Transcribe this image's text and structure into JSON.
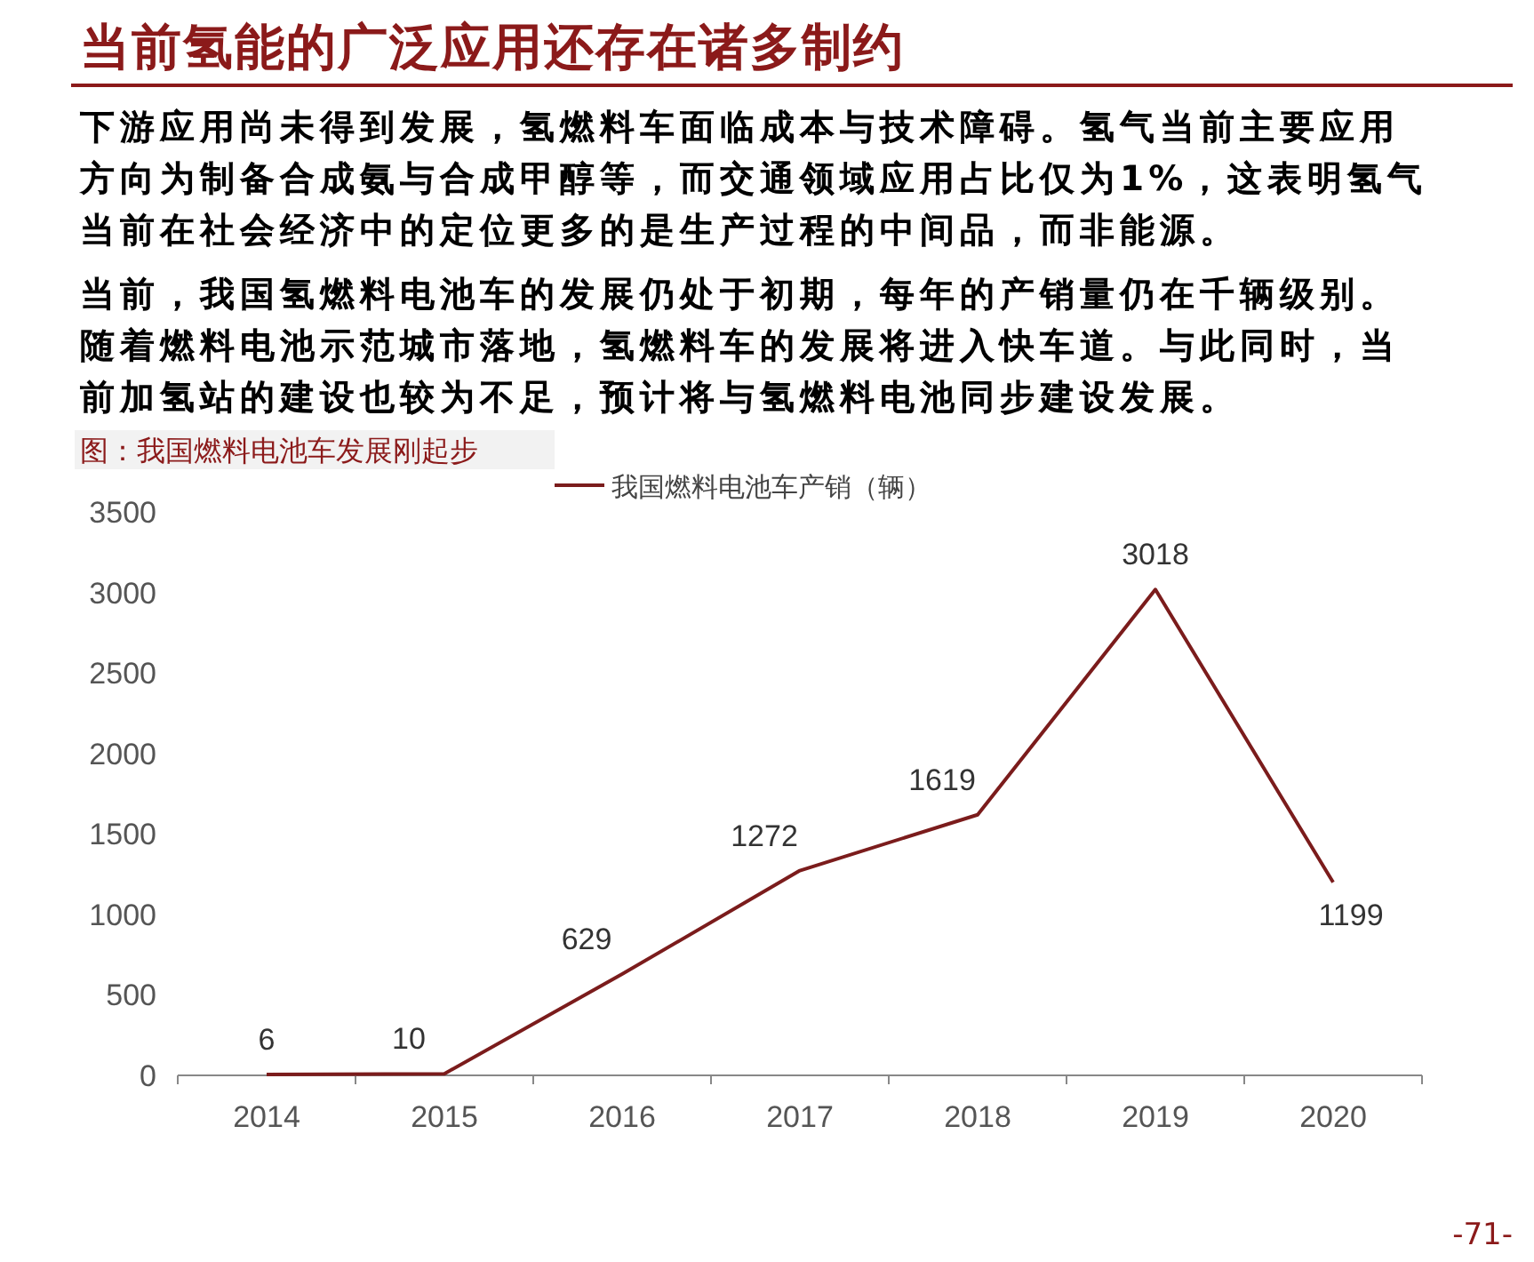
{
  "chart_data": {
    "type": "line",
    "title": "当前氢能的广泛应用还存在诸多制约",
    "subtitle": "图：我国燃料电池车发展刚起步",
    "annotations": [
      "下游应用尚未得到发展，氢燃料车面临成本与技术障碍。氢气当前主要应用方向为制备合成氨与合成甲醇等，而交通领域应用占比仅为1%，这表明氢气当前在社会经济中的定位更多的是生产过程的中间品，而非能源。",
      "当前，我国氢燃料电池车的发展仍处于初期，每年的产销量仍在千辆级别。随着燃料电池示范城市落地，氢燃料车的发展将进入快车道。与此同时，当前加氢站的建设也较为不足，预计将与氢燃料电池同步建设发展。",
      "-71-"
    ],
    "categories": [
      "2014",
      "2015",
      "2016",
      "2017",
      "2018",
      "2019",
      "2020"
    ],
    "series": [
      {
        "name": "我国燃料电池车产销（辆）",
        "color": "#7b1c1c",
        "values": [
          6,
          10,
          629,
          1272,
          1619,
          3018,
          1199
        ]
      }
    ],
    "ylim": [
      0,
      3500
    ],
    "yticks": [
      0,
      500,
      1000,
      1500,
      2000,
      2500,
      3000,
      3500
    ],
    "legend": "top",
    "data_labels": true,
    "marker": "none",
    "grid": false
  }
}
